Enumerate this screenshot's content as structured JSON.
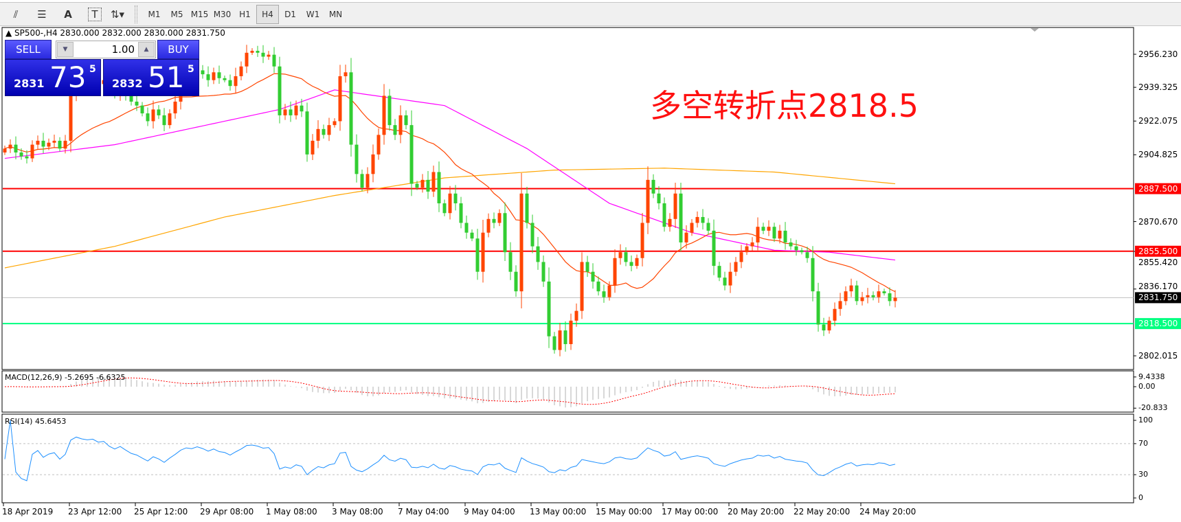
{
  "toolbar": {
    "icons": [
      "elliott-wave-icon",
      "fibonacci-icon",
      "text-icon",
      "text-label-icon",
      "arrows-icon"
    ],
    "text_tool": "A",
    "timeframes": [
      "M1",
      "M5",
      "M15",
      "M30",
      "H1",
      "H4",
      "D1",
      "W1",
      "MN"
    ],
    "active_timeframe": "H4"
  },
  "chart": {
    "header": "SP500-,H4  2830.000 2832.000 2830.000 2831.750",
    "annotation": "多空转折点2818.5",
    "trade_panel": {
      "sell_label": "SELL",
      "buy_label": "BUY",
      "lot": "1.00",
      "sell_price": {
        "big": "2831",
        "main": "73",
        "sup": "5"
      },
      "buy_price": {
        "big": "2832",
        "main": "51",
        "sup": "5"
      }
    },
    "price_axis": [
      "2956.230",
      "2939.325",
      "2922.075",
      "2904.825",
      "2870.670",
      "2855.420",
      "2836.170",
      "2802.015"
    ],
    "levels": [
      {
        "label": "2887.500",
        "value": 2887.5,
        "color": "#ff0000"
      },
      {
        "label": "2855.500",
        "value": 2855.5,
        "color": "#ff0000"
      },
      {
        "label": "2818.500",
        "value": 2818.5,
        "color": "#00ff80"
      }
    ],
    "bid": {
      "label": "2831.750",
      "value": 2831.75
    },
    "colors": {
      "bull": "#ff4500",
      "bear": "#32cd32",
      "ma_fast": "#ff4500",
      "ma_mid": "#ff00ff",
      "ma_slow": "#ffa500"
    },
    "date_labels": [
      "18 Apr 2019",
      "23 Apr 12:00",
      "25 Apr 12:00",
      "29 Apr 08:00",
      "1 May 08:00",
      "3 May 08:00",
      "7 May 04:00",
      "9 May 04:00",
      "13 May 00:00",
      "15 May 00:00",
      "17 May 00:00",
      "20 May 20:00",
      "22 May 20:00",
      "24 May 20:00"
    ]
  },
  "chart_data": {
    "type": "candlestick",
    "ylim": [
      2795,
      2962
    ],
    "closes": [
      2908,
      2910,
      2906,
      2904,
      2903,
      2910,
      2912,
      2909,
      2911,
      2912,
      2908,
      2912,
      2935,
      2945,
      2943,
      2942,
      2944,
      2941,
      2943,
      2938,
      2935,
      2940,
      2936,
      2932,
      2930,
      2926,
      2922,
      2928,
      2925,
      2920,
      2926,
      2932,
      2940,
      2945,
      2944,
      2948,
      2946,
      2943,
      2947,
      2944,
      2943,
      2940,
      2945,
      2950,
      2957,
      2958,
      2957,
      2955,
      2956,
      2950,
      2925,
      2928,
      2925,
      2930,
      2927,
      2905,
      2912,
      2918,
      2915,
      2920,
      2922,
      2945,
      2947,
      2910,
      2895,
      2888,
      2895,
      2905,
      2915,
      2935,
      2920,
      2915,
      2925,
      2920,
      2890,
      2888,
      2892,
      2886,
      2896,
      2880,
      2875,
      2885,
      2880,
      2870,
      2865,
      2862,
      2845,
      2865,
      2872,
      2870,
      2875,
      2855,
      2845,
      2835,
      2885,
      2870,
      2858,
      2850,
      2840,
      2812,
      2805,
      2815,
      2808,
      2820,
      2825,
      2850,
      2845,
      2840,
      2835,
      2832,
      2838,
      2852,
      2855,
      2850,
      2848,
      2852,
      2870,
      2892,
      2885,
      2880,
      2868,
      2872,
      2885,
      2860,
      2865,
      2870,
      2873,
      2870,
      2866,
      2848,
      2842,
      2838,
      2845,
      2850,
      2855,
      2858,
      2860,
      2868,
      2866,
      2868,
      2862,
      2866,
      2860,
      2858,
      2856,
      2855,
      2852,
      2835,
      2818,
      2815,
      2820,
      2826,
      2830,
      2835,
      2838,
      2830,
      2832,
      2833,
      2832,
      2835,
      2834,
      2830,
      2831.75
    ],
    "ma_mid_points": [
      [
        0,
        2903
      ],
      [
        20,
        2910
      ],
      [
        40,
        2922
      ],
      [
        50,
        2928
      ],
      [
        60,
        2938
      ],
      [
        80,
        2930
      ],
      [
        95,
        2908
      ],
      [
        110,
        2880
      ],
      [
        125,
        2865
      ],
      [
        140,
        2856
      ],
      [
        150,
        2855
      ],
      [
        162,
        2851
      ]
    ],
    "ma_slow_points": [
      [
        0,
        2847
      ],
      [
        20,
        2858
      ],
      [
        40,
        2873
      ],
      [
        60,
        2884
      ],
      [
        80,
        2893
      ],
      [
        100,
        2897
      ],
      [
        120,
        2898
      ],
      [
        140,
        2896
      ],
      [
        162,
        2890
      ]
    ],
    "macd": {
      "label": "MACD(12,26,9) -5.2695 -6.6325",
      "axis": [
        "9.4338",
        "0.00",
        "-20.833"
      ]
    },
    "rsi": {
      "label": "RSI(14) 45.6453",
      "axis": [
        "100",
        "70",
        "30",
        "0"
      ],
      "levels": [
        70,
        30
      ]
    }
  }
}
